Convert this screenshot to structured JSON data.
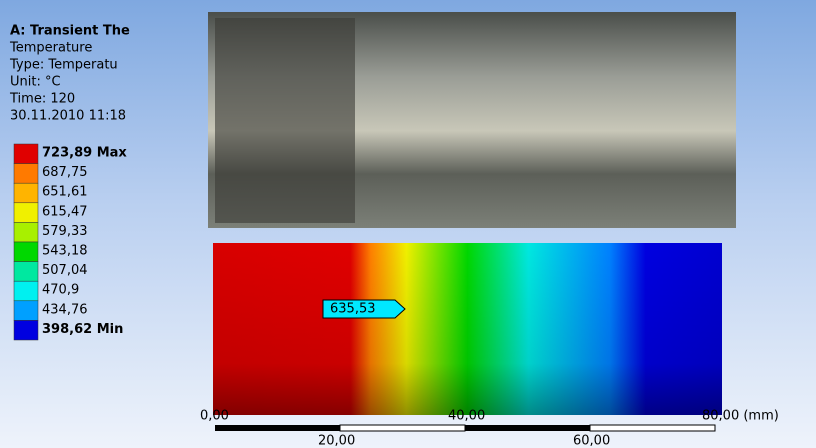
{
  "header": {
    "title": "A: Transient The",
    "lines": [
      "Temperature",
      "Type: Temperatu",
      "Unit: °C",
      "Time: 120",
      "30.11.2010 11:18"
    ]
  },
  "legend": {
    "labels": [
      "723,89 Max",
      "687,75",
      "651,61",
      "615,47",
      "579,33",
      "543,18",
      "507,04",
      "470,9",
      "434,76",
      "398,62 Min"
    ],
    "colors": [
      "#e00000",
      "#ff7a00",
      "#ffb400",
      "#f0f000",
      "#a8f000",
      "#00d800",
      "#00e8a0",
      "#00f0f0",
      "#00a0ff",
      "#0000e0"
    ]
  },
  "probe": {
    "label": "635,53"
  },
  "scale": {
    "top_labels": [
      "0,00",
      "40,00",
      "80,00 (mm)"
    ],
    "bottom_labels": [
      "20,00",
      "60,00"
    ]
  }
}
